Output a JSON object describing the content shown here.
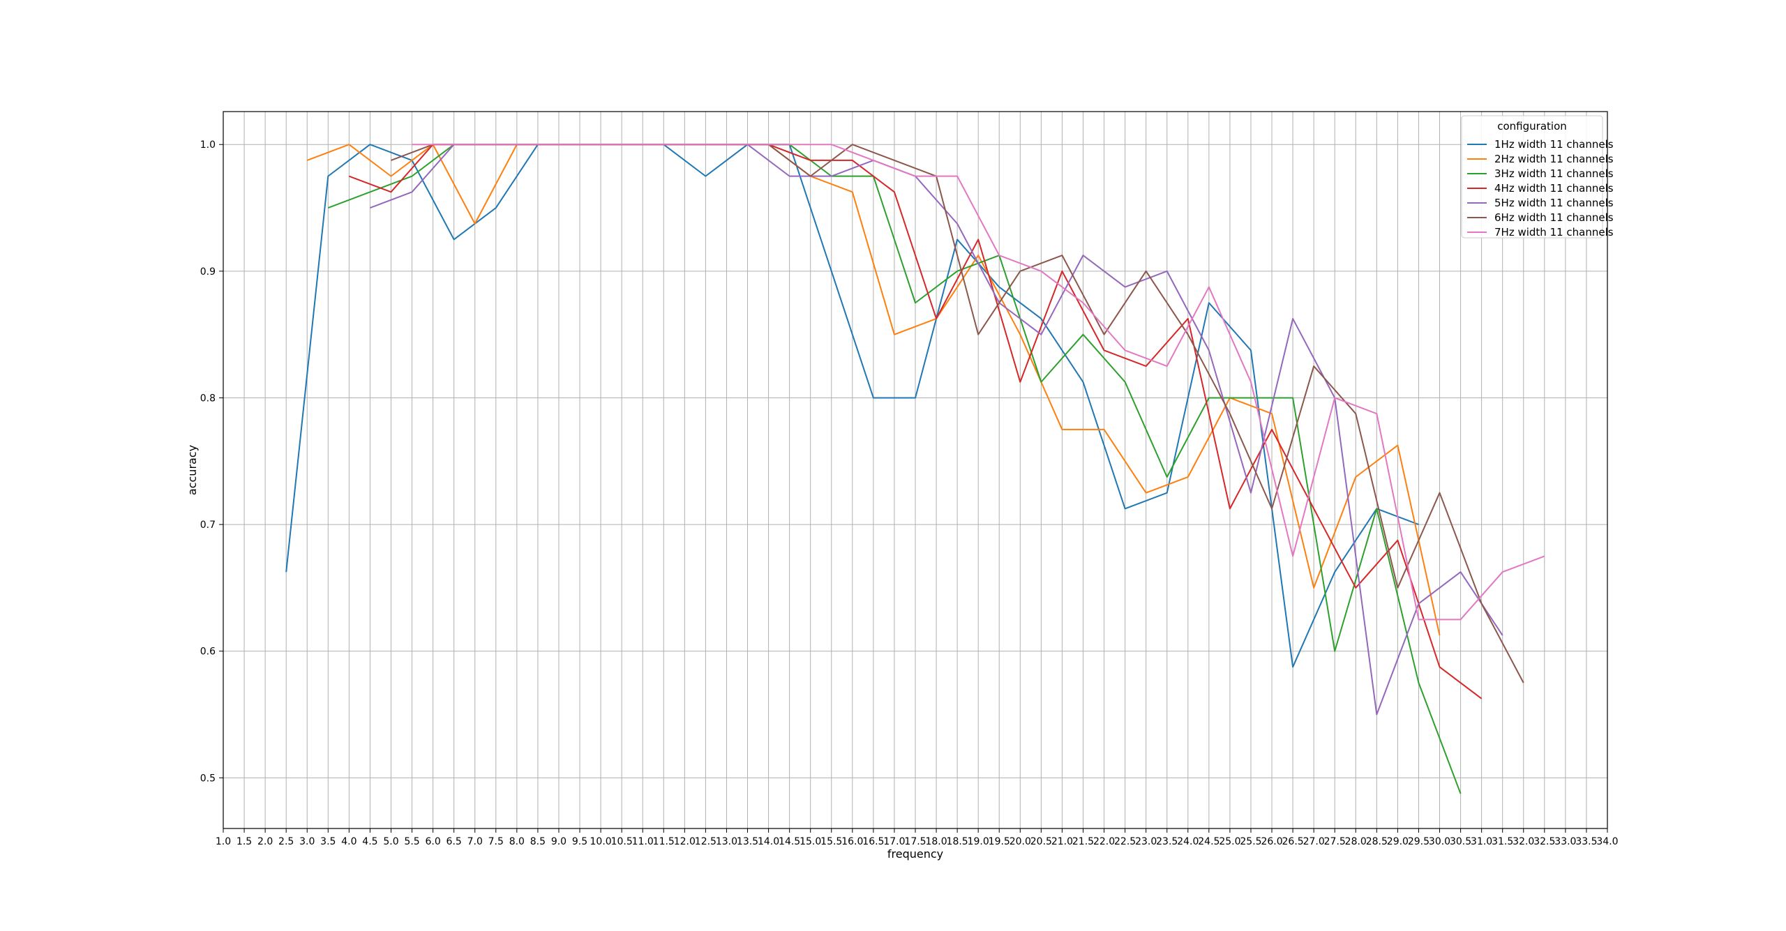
{
  "chart_data": {
    "type": "line",
    "title": "",
    "xlabel": "frequency",
    "ylabel": "accuracy",
    "xlim": [
      1.0,
      34.0
    ],
    "ylim": [
      0.46,
      1.026
    ],
    "grid": true,
    "x_ticks": [
      1.0,
      1.5,
      2.0,
      2.5,
      3.0,
      3.5,
      4.0,
      4.5,
      5.0,
      5.5,
      6.0,
      6.5,
      7.0,
      7.5,
      8.0,
      8.5,
      9.0,
      9.5,
      10.0,
      10.5,
      11.0,
      11.5,
      12.0,
      12.5,
      13.0,
      13.5,
      14.0,
      14.5,
      15.0,
      15.5,
      16.0,
      16.5,
      17.0,
      17.5,
      18.0,
      18.5,
      19.0,
      19.5,
      20.0,
      20.5,
      21.0,
      21.5,
      22.0,
      22.5,
      23.0,
      23.5,
      24.0,
      24.5,
      25.0,
      25.5,
      26.0,
      26.5,
      27.0,
      27.5,
      28.0,
      28.5,
      29.0,
      29.5,
      30.0,
      30.5,
      31.0,
      31.5,
      32.0,
      32.5,
      33.0,
      33.5,
      34.0
    ],
    "x_tick_labels": [
      "1.0",
      "1.5",
      "2.0",
      "2.5",
      "3.0",
      "3.5",
      "4.0",
      "4.5",
      "5.0",
      "5.5",
      "6.0",
      "6.5",
      "7.0",
      "7.5",
      "8.0",
      "8.5",
      "9.0",
      "9.5",
      "10.0",
      "10.5",
      "11.0",
      "11.5",
      "12.0",
      "12.5",
      "13.0",
      "13.5",
      "14.0",
      "14.5",
      "15.0",
      "15.5",
      "16.0",
      "16.5",
      "17.0",
      "17.5",
      "18.0",
      "18.5",
      "19.0",
      "19.5",
      "20.0",
      "20.5",
      "21.0",
      "21.5",
      "22.0",
      "22.5",
      "23.0",
      "23.5",
      "24.0",
      "24.5",
      "25.0",
      "25.5",
      "26.0",
      "26.5",
      "27.0",
      "27.5",
      "28.0",
      "28.5",
      "29.0",
      "29.5",
      "30.0",
      "30.5",
      "31.0",
      "31.5",
      "32.0",
      "32.5",
      "33.0",
      "33.5",
      "34.0"
    ],
    "y_ticks": [
      0.5,
      0.6,
      0.7,
      0.8,
      0.9,
      1.0
    ],
    "y_tick_labels": [
      "0.5",
      "0.6",
      "0.7",
      "0.8",
      "0.9",
      "1.0"
    ],
    "legend": {
      "title": "configuration",
      "placement": "top-right"
    },
    "series": [
      {
        "name": "1Hz width 11 channels",
        "color": "#1f77b4",
        "x": [
          2.5,
          3.5,
          4.5,
          5.5,
          6.5,
          7.5,
          8.5,
          9.5,
          10.5,
          11.5,
          12.5,
          13.5,
          14.5,
          15.5,
          16.5,
          17.5,
          18.5,
          19.5,
          20.5,
          21.5,
          22.5,
          23.5,
          24.5,
          25.5,
          26.5,
          27.5,
          28.5,
          29.5
        ],
        "y": [
          0.6625,
          0.975,
          1.0,
          0.9875,
          0.925,
          0.95,
          1.0,
          1.0,
          1.0,
          1.0,
          0.975,
          1.0,
          1.0,
          0.9,
          0.8,
          0.8,
          0.925,
          0.8875,
          0.8625,
          0.8125,
          0.7125,
          0.725,
          0.875,
          0.8375,
          0.5875,
          0.6625,
          0.7125,
          0.7
        ]
      },
      {
        "name": "2Hz width 11 channels",
        "color": "#ff7f0e",
        "x": [
          3.0,
          4.0,
          5.0,
          6.0,
          7.0,
          8.0,
          9.0,
          10.0,
          11.0,
          12.0,
          13.0,
          14.0,
          15.0,
          16.0,
          17.0,
          18.0,
          19.0,
          20.0,
          21.0,
          22.0,
          23.0,
          24.0,
          25.0,
          26.0,
          27.0,
          28.0,
          29.0,
          30.0
        ],
        "y": [
          0.9875,
          1.0,
          0.975,
          1.0,
          0.9375,
          1.0,
          1.0,
          1.0,
          1.0,
          1.0,
          1.0,
          1.0,
          0.975,
          0.9625,
          0.85,
          0.8625,
          0.9125,
          0.85,
          0.775,
          0.775,
          0.725,
          0.7375,
          0.8,
          0.7875,
          0.65,
          0.7375,
          0.7625,
          0.6125
        ]
      },
      {
        "name": "3Hz width 11 channels",
        "color": "#2ca02c",
        "x": [
          3.5,
          4.5,
          5.5,
          6.5,
          7.5,
          8.5,
          9.5,
          10.5,
          11.5,
          12.5,
          13.5,
          14.5,
          15.5,
          16.5,
          17.5,
          18.5,
          19.5,
          20.5,
          21.5,
          22.5,
          23.5,
          24.5,
          25.5,
          26.5,
          27.5,
          28.5,
          29.5,
          30.5
        ],
        "y": [
          0.95,
          0.9625,
          0.975,
          1.0,
          1.0,
          1.0,
          1.0,
          1.0,
          1.0,
          1.0,
          1.0,
          1.0,
          0.975,
          0.975,
          0.875,
          0.9,
          0.9125,
          0.8125,
          0.85,
          0.8125,
          0.7375,
          0.8,
          0.8,
          0.8,
          0.6,
          0.7125,
          0.575,
          0.4875
        ]
      },
      {
        "name": "4Hz width 11 channels",
        "color": "#d62728",
        "x": [
          4.0,
          5.0,
          6.0,
          7.0,
          8.0,
          9.0,
          10.0,
          11.0,
          12.0,
          13.0,
          14.0,
          15.0,
          16.0,
          17.0,
          18.0,
          19.0,
          20.0,
          21.0,
          22.0,
          23.0,
          24.0,
          25.0,
          26.0,
          27.0,
          28.0,
          29.0,
          30.0,
          31.0
        ],
        "y": [
          0.975,
          0.9625,
          1.0,
          1.0,
          1.0,
          1.0,
          1.0,
          1.0,
          1.0,
          1.0,
          1.0,
          0.9875,
          0.9875,
          0.9625,
          0.8625,
          0.925,
          0.8125,
          0.9,
          0.8375,
          0.825,
          0.8625,
          0.7125,
          0.775,
          0.7125,
          0.65,
          0.6875,
          0.5875,
          0.5625
        ]
      },
      {
        "name": "5Hz width 11 channels",
        "color": "#9467bd",
        "x": [
          4.5,
          5.5,
          6.5,
          7.5,
          8.5,
          9.5,
          10.5,
          11.5,
          12.5,
          13.5,
          14.5,
          15.5,
          16.5,
          17.5,
          18.5,
          19.5,
          20.5,
          21.5,
          22.5,
          23.5,
          24.5,
          25.5,
          26.5,
          27.5,
          28.5,
          29.5,
          30.5,
          31.5
        ],
        "y": [
          0.95,
          0.9625,
          1.0,
          1.0,
          1.0,
          1.0,
          1.0,
          1.0,
          1.0,
          1.0,
          0.975,
          0.975,
          0.9875,
          0.975,
          0.9375,
          0.875,
          0.85,
          0.9125,
          0.8875,
          0.9,
          0.8375,
          0.725,
          0.8625,
          0.8,
          0.55,
          0.6375,
          0.6625,
          0.6125
        ]
      },
      {
        "name": "6Hz width 11 channels",
        "color": "#8c564b",
        "x": [
          5.0,
          6.0,
          7.0,
          8.0,
          9.0,
          10.0,
          11.0,
          12.0,
          13.0,
          14.0,
          15.0,
          16.0,
          17.0,
          18.0,
          19.0,
          20.0,
          21.0,
          22.0,
          23.0,
          24.0,
          25.0,
          26.0,
          27.0,
          28.0,
          29.0,
          30.0,
          31.0,
          32.0
        ],
        "y": [
          0.9875,
          1.0,
          1.0,
          1.0,
          1.0,
          1.0,
          1.0,
          1.0,
          1.0,
          1.0,
          0.975,
          1.0,
          0.9875,
          0.975,
          0.85,
          0.9,
          0.9125,
          0.85,
          0.9,
          0.85,
          0.7875,
          0.7125,
          0.825,
          0.7875,
          0.65,
          0.725,
          0.6375,
          0.575
        ]
      },
      {
        "name": "7Hz width 11 channels",
        "color": "#e377c2",
        "x": [
          5.5,
          6.5,
          7.5,
          8.5,
          9.5,
          10.5,
          11.5,
          12.5,
          13.5,
          14.5,
          15.5,
          16.5,
          17.5,
          18.5,
          19.5,
          20.5,
          21.5,
          22.5,
          23.5,
          24.5,
          25.5,
          26.5,
          27.5,
          28.5,
          29.5,
          30.5,
          31.5,
          32.5
        ],
        "y": [
          1.0,
          1.0,
          1.0,
          1.0,
          1.0,
          1.0,
          1.0,
          1.0,
          1.0,
          1.0,
          1.0,
          0.9875,
          0.975,
          0.975,
          0.9125,
          0.9,
          0.875,
          0.8375,
          0.825,
          0.8875,
          0.8125,
          0.675,
          0.8,
          0.7875,
          0.625,
          0.625,
          0.6625,
          0.675
        ]
      }
    ]
  }
}
